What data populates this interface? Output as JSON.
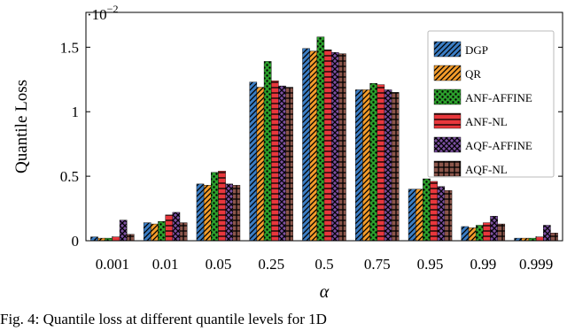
{
  "chart_data": {
    "type": "bar",
    "y_scale_label": {
      "base": "·10",
      "exponent": "−2"
    },
    "xlabel": "α",
    "ylabel": "Quantile Loss",
    "caption": "Fig. 4: Quantile loss at different quantile levels for 1D",
    "categories": [
      "0.001",
      "0.01",
      "0.05",
      "0.25",
      "0.5",
      "0.75",
      "0.95",
      "0.99",
      "0.999"
    ],
    "series": [
      {
        "name": "DGP",
        "color": "#3b7dc4",
        "hatch": "diagonal",
        "values": [
          0.03,
          0.14,
          0.44,
          1.23,
          1.49,
          1.17,
          0.4,
          0.11,
          0.02
        ]
      },
      {
        "name": "QR",
        "color": "#f39c2b",
        "hatch": "diagonal",
        "values": [
          0.02,
          0.13,
          0.43,
          1.19,
          1.47,
          1.17,
          0.4,
          0.1,
          0.02
        ]
      },
      {
        "name": "ANF-AFFINE",
        "color": "#2ca02c",
        "hatch": "dots",
        "values": [
          0.02,
          0.15,
          0.53,
          1.39,
          1.58,
          1.22,
          0.48,
          0.12,
          0.02
        ]
      },
      {
        "name": "ANF-NL",
        "color": "#e8373c",
        "hatch": "horizontal",
        "values": [
          0.03,
          0.2,
          0.54,
          1.24,
          1.48,
          1.21,
          0.46,
          0.14,
          0.03
        ]
      },
      {
        "name": "AQF-AFFINE",
        "color": "#7b4fa0",
        "hatch": "crosshatch",
        "values": [
          0.16,
          0.22,
          0.44,
          1.2,
          1.46,
          1.17,
          0.42,
          0.19,
          0.12
        ]
      },
      {
        "name": "AQF-NL",
        "color": "#8c564b",
        "hatch": "grid",
        "values": [
          0.05,
          0.14,
          0.43,
          1.19,
          1.45,
          1.15,
          0.39,
          0.13,
          0.06
        ]
      }
    ],
    "ylim": [
      0,
      1.77
    ],
    "yticks": [
      0,
      0.5,
      1,
      1.5
    ],
    "legend": "upper right"
  }
}
